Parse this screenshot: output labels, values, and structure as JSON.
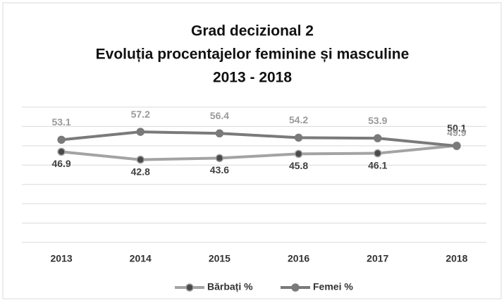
{
  "chart_data": {
    "type": "line",
    "title": [
      "Grad decizional 2",
      "Evoluția procentajelor feminine și masculine",
      "2013 - 2018"
    ],
    "categories": [
      "2013",
      "2014",
      "2015",
      "2016",
      "2017",
      "2018"
    ],
    "series": [
      {
        "name": "Bărbați %",
        "color": "#a3a3a3",
        "marker_color": "#4a4a4a",
        "label_color": "#404040",
        "values": [
          46.9,
          42.8,
          43.6,
          45.8,
          46.1,
          50.1
        ]
      },
      {
        "name": "Femei %",
        "color": "#7a7a7a",
        "marker_color": "#7a7a7a",
        "label_color": "#9a9a9a",
        "values": [
          53.1,
          57.2,
          56.4,
          54.2,
          53.9,
          49.9
        ]
      }
    ],
    "ylim": [
      0,
      70
    ],
    "yticks": [
      0,
      10,
      20,
      30,
      40,
      50,
      60,
      70
    ],
    "grid": true,
    "legend": "bottom"
  }
}
